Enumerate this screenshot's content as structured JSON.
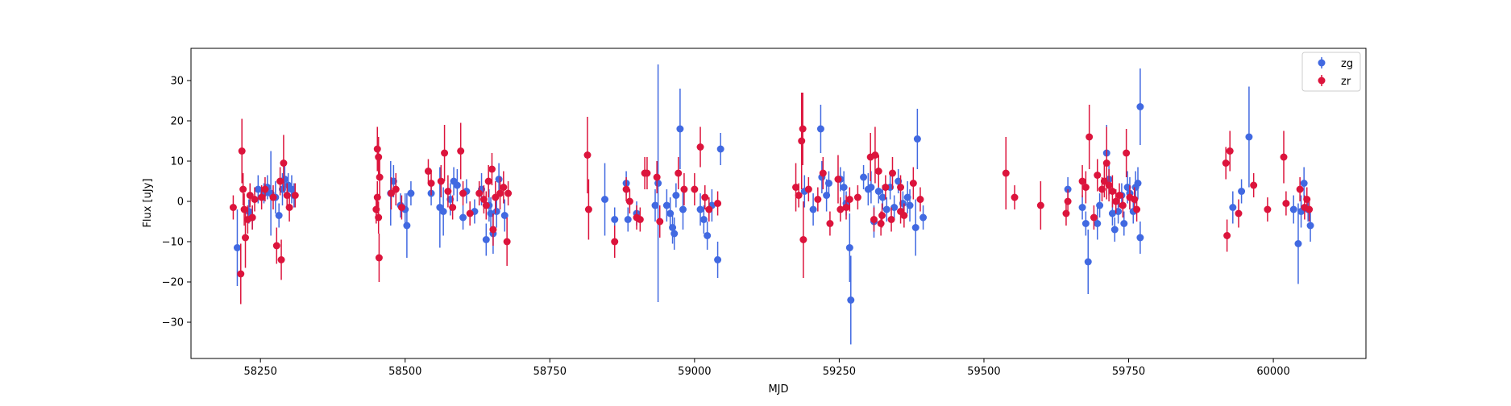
{
  "chart_data": {
    "type": "scatter",
    "title": "",
    "xlabel": "MJD",
    "ylabel": "Flux [uJy]",
    "xlim": [
      58130,
      60160
    ],
    "ylim": [
      -39,
      38
    ],
    "xticks": [
      58250,
      58500,
      58750,
      59000,
      59250,
      59500,
      59750,
      60000
    ],
    "yticks": [
      -30,
      -20,
      -10,
      0,
      10,
      20,
      30
    ],
    "grid": false,
    "legend": "top-right",
    "series": [
      {
        "name": "zg",
        "color": "#4169e1",
        "points": [
          [
            58210,
            -11.5,
            9.5
          ],
          [
            58230,
            -2.5,
            3.0
          ],
          [
            58236,
            -4.0,
            3.0
          ],
          [
            58246,
            3.0,
            3.5
          ],
          [
            58256,
            2.0,
            2.5
          ],
          [
            58262,
            3.5,
            3.0
          ],
          [
            58268,
            2.0,
            10.5
          ],
          [
            58276,
            1.0,
            4.0
          ],
          [
            58282,
            -3.5,
            3.0
          ],
          [
            58288,
            3.0,
            4.0
          ],
          [
            58292,
            5.5,
            4.0
          ],
          [
            58298,
            4.0,
            3.0
          ],
          [
            58304,
            3.0,
            3.5
          ],
          [
            58308,
            1.5,
            3.0
          ],
          [
            58475,
            2.0,
            8.0
          ],
          [
            58480,
            5.0,
            4.0
          ],
          [
            58492,
            -1.0,
            3.0
          ],
          [
            58500,
            -2.0,
            4.0
          ],
          [
            58503,
            -6.0,
            8.0
          ],
          [
            58510,
            2.0,
            3.0
          ],
          [
            58545,
            2.0,
            3.0
          ],
          [
            58560,
            -1.5,
            10.0
          ],
          [
            58566,
            -2.5,
            6.0
          ],
          [
            58578,
            0.5,
            4.0
          ],
          [
            58584,
            5.0,
            3.5
          ],
          [
            58590,
            4.0,
            4.0
          ],
          [
            58600,
            -4.0,
            3.0
          ],
          [
            58606,
            2.5,
            3.0
          ],
          [
            58620,
            -2.5,
            3.0
          ],
          [
            58632,
            3.0,
            4.0
          ],
          [
            58640,
            -9.5,
            4.0
          ],
          [
            58645,
            -1.0,
            4.0
          ],
          [
            58648,
            -3.0,
            4.0
          ],
          [
            58652,
            -8.0,
            5.0
          ],
          [
            58658,
            -2.5,
            4.0
          ],
          [
            58662,
            5.5,
            4.0
          ],
          [
            58672,
            -3.5,
            4.0
          ],
          [
            58845,
            0.5,
            9.0
          ],
          [
            58862,
            -4.5,
            3.0
          ],
          [
            58882,
            4.5,
            3.0
          ],
          [
            58885,
            -4.5,
            3.0
          ],
          [
            58900,
            -3.0,
            3.0
          ],
          [
            58932,
            -1.0,
            4.0
          ],
          [
            58937,
            4.5,
            29.5
          ],
          [
            58952,
            -1.0,
            4.0
          ],
          [
            58958,
            -3.0,
            4.0
          ],
          [
            58962,
            -6.5,
            4.0
          ],
          [
            58965,
            -8.0,
            4.0
          ],
          [
            58968,
            1.5,
            3.0
          ],
          [
            58975,
            18.0,
            10.0
          ],
          [
            58980,
            -2.0,
            5.0
          ],
          [
            59010,
            -2.0,
            4.0
          ],
          [
            59016,
            -4.5,
            3.5
          ],
          [
            59022,
            -8.5,
            3.5
          ],
          [
            59030,
            -1.0,
            4.0
          ],
          [
            59040,
            -14.5,
            4.5
          ],
          [
            59045,
            13.0,
            4.0
          ],
          [
            59190,
            2.5,
            4.0
          ],
          [
            59205,
            -2.0,
            4.0
          ],
          [
            59218,
            18.0,
            6.0
          ],
          [
            59220,
            6.0,
            4.0
          ],
          [
            59228,
            1.5,
            4.0
          ],
          [
            59232,
            4.5,
            3.0
          ],
          [
            59252,
            5.5,
            3.0
          ],
          [
            59258,
            3.5,
            4.0
          ],
          [
            59262,
            -0.5,
            3.0
          ],
          [
            59268,
            -11.5,
            8.5
          ],
          [
            59270,
            -24.5,
            11.0
          ],
          [
            59292,
            6.0,
            3.0
          ],
          [
            59300,
            3.0,
            4.0
          ],
          [
            59305,
            3.5,
            4.0
          ],
          [
            59310,
            -5.0,
            4.0
          ],
          [
            59318,
            2.5,
            3.0
          ],
          [
            59325,
            1.0,
            3.0
          ],
          [
            59332,
            -2.0,
            3.0
          ],
          [
            59338,
            3.5,
            3.0
          ],
          [
            59345,
            -1.5,
            3.0
          ],
          [
            59352,
            5.0,
            3.0
          ],
          [
            59360,
            -0.5,
            3.0
          ],
          [
            59368,
            1.0,
            4.0
          ],
          [
            59372,
            -1.0,
            4.0
          ],
          [
            59382,
            -6.5,
            7.0
          ],
          [
            59385,
            15.5,
            7.5
          ],
          [
            59395,
            -4.0,
            3.0
          ],
          [
            59645,
            3.0,
            3.0
          ],
          [
            59670,
            -1.5,
            3.0
          ],
          [
            59676,
            -5.5,
            3.0
          ],
          [
            59680,
            -15.0,
            8.0
          ],
          [
            59696,
            -5.5,
            4.0
          ],
          [
            59700,
            -1.0,
            3.0
          ],
          [
            59712,
            12.0,
            7.0
          ],
          [
            59716,
            5.5,
            4.0
          ],
          [
            59722,
            -3.0,
            3.0
          ],
          [
            59726,
            -7.0,
            3.0
          ],
          [
            59732,
            -2.5,
            3.0
          ],
          [
            59738,
            1.5,
            3.0
          ],
          [
            59742,
            -5.5,
            3.0
          ],
          [
            59748,
            3.5,
            4.0
          ],
          [
            59752,
            2.0,
            4.0
          ],
          [
            59758,
            -2.5,
            3.0
          ],
          [
            59762,
            3.5,
            4.0
          ],
          [
            59766,
            4.5,
            4.0
          ],
          [
            59770,
            -9.0,
            4.0
          ],
          [
            59770,
            23.5,
            9.5
          ],
          [
            59930,
            -1.5,
            4.0
          ],
          [
            59945,
            2.5,
            3.0
          ],
          [
            59958,
            16.0,
            12.5
          ],
          [
            60035,
            -2.0,
            3.5
          ],
          [
            60043,
            -10.5,
            10.0
          ],
          [
            60048,
            -2.5,
            4.0
          ],
          [
            60053,
            4.5,
            4.0
          ],
          [
            60060,
            -2.0,
            3.0
          ],
          [
            60064,
            -6.0,
            4.0
          ]
        ]
      },
      {
        "name": "zr",
        "color": "#dc143c",
        "points": [
          [
            58203,
            -1.5,
            3.0
          ],
          [
            58216,
            -18.0,
            7.5
          ],
          [
            58218,
            12.5,
            8.0
          ],
          [
            58220,
            3.0,
            4.0
          ],
          [
            58222,
            -2.0,
            4.0
          ],
          [
            58224,
            -9.0,
            7.5
          ],
          [
            58228,
            -4.5,
            3.5
          ],
          [
            58232,
            1.5,
            3.0
          ],
          [
            58236,
            -4.0,
            3.0
          ],
          [
            58240,
            0.5,
            3.0
          ],
          [
            58252,
            1.0,
            3.0
          ],
          [
            58258,
            3.0,
            3.0
          ],
          [
            58272,
            1.0,
            3.0
          ],
          [
            58278,
            -11.0,
            4.5
          ],
          [
            58284,
            5.0,
            3.5
          ],
          [
            58286,
            -14.5,
            5.0
          ],
          [
            58290,
            9.5,
            7.0
          ],
          [
            58296,
            1.5,
            3.0
          ],
          [
            58300,
            -1.5,
            3.5
          ],
          [
            58310,
            1.5,
            3.0
          ],
          [
            58452,
            13.0,
            5.5
          ],
          [
            58454,
            11.0,
            5.0
          ],
          [
            58456,
            6.0,
            5.0
          ],
          [
            58450,
            -2.0,
            3.5
          ],
          [
            58452,
            1.0,
            4.0
          ],
          [
            58454,
            -4.0,
            4.0
          ],
          [
            58455,
            -14.0,
            6.0
          ],
          [
            58476,
            2.0,
            4.0
          ],
          [
            58484,
            3.0,
            4.0
          ],
          [
            58494,
            -1.5,
            3.0
          ],
          [
            58540,
            7.5,
            3.0
          ],
          [
            58545,
            4.5,
            3.0
          ],
          [
            58562,
            5.0,
            4.0
          ],
          [
            58568,
            12.0,
            7.0
          ],
          [
            58574,
            2.5,
            4.0
          ],
          [
            58582,
            -1.5,
            3.0
          ],
          [
            58596,
            12.5,
            7.0
          ],
          [
            58600,
            2.0,
            3.0
          ],
          [
            58612,
            -3.0,
            3.0
          ],
          [
            58628,
            2.0,
            3.0
          ],
          [
            58636,
            0.5,
            3.5
          ],
          [
            58640,
            -1.0,
            3.5
          ],
          [
            58644,
            5.0,
            4.0
          ],
          [
            58650,
            8.0,
            4.0
          ],
          [
            58652,
            -7.0,
            4.0
          ],
          [
            58656,
            1.0,
            4.0
          ],
          [
            58664,
            2.0,
            4.0
          ],
          [
            58670,
            3.5,
            4.0
          ],
          [
            58676,
            -10.0,
            6.0
          ],
          [
            58678,
            2.0,
            3.0
          ],
          [
            58815,
            11.5,
            9.5
          ],
          [
            58817,
            -2.0,
            7.5
          ],
          [
            58862,
            -10.0,
            4.0
          ],
          [
            58882,
            3.0,
            3.0
          ],
          [
            58888,
            0.0,
            3.0
          ],
          [
            58900,
            -4.0,
            3.0
          ],
          [
            58906,
            -4.5,
            3.0
          ],
          [
            58914,
            7.0,
            4.0
          ],
          [
            58918,
            7.0,
            4.0
          ],
          [
            58935,
            6.0,
            4.0
          ],
          [
            58940,
            -5.0,
            4.0
          ],
          [
            58972,
            7.0,
            4.0
          ],
          [
            58982,
            3.0,
            4.0
          ],
          [
            59000,
            3.0,
            4.0
          ],
          [
            59010,
            13.5,
            5.0
          ],
          [
            59018,
            1.0,
            3.0
          ],
          [
            59025,
            -2.0,
            3.0
          ],
          [
            59040,
            -0.5,
            3.0
          ],
          [
            59175,
            3.5,
            6.0
          ],
          [
            59180,
            1.5,
            3.0
          ],
          [
            59185,
            15.0,
            12.0
          ],
          [
            59187,
            18.0,
            9.0
          ],
          [
            59188,
            -9.5,
            9.5
          ],
          [
            59197,
            3.0,
            3.0
          ],
          [
            59213,
            0.5,
            3.0
          ],
          [
            59222,
            7.0,
            4.0
          ],
          [
            59234,
            -5.5,
            3.0
          ],
          [
            59248,
            5.5,
            6.0
          ],
          [
            59252,
            -2.0,
            3.0
          ],
          [
            59262,
            -1.5,
            3.0
          ],
          [
            59268,
            0.5,
            3.0
          ],
          [
            59282,
            1.0,
            3.0
          ],
          [
            59304,
            11.0,
            6.0
          ],
          [
            59312,
            11.5,
            7.0
          ],
          [
            59318,
            7.5,
            4.0
          ],
          [
            59324,
            -3.5,
            3.0
          ],
          [
            59330,
            3.5,
            3.0
          ],
          [
            59342,
            7.0,
            4.0
          ],
          [
            59356,
            3.5,
            3.0
          ],
          [
            59362,
            -3.5,
            3.0
          ],
          [
            59378,
            4.5,
            4.0
          ],
          [
            59390,
            0.5,
            3.0
          ],
          [
            59310,
            -4.5,
            3.0
          ],
          [
            59322,
            -5.5,
            3.0
          ],
          [
            59340,
            -4.5,
            3.0
          ],
          [
            59356,
            -2.5,
            3.0
          ],
          [
            59538,
            7.0,
            9.0
          ],
          [
            59553,
            1.0,
            3.0
          ],
          [
            59598,
            -1.0,
            6.0
          ],
          [
            59645,
            0.0,
            3.0
          ],
          [
            59642,
            -3.0,
            3.0
          ],
          [
            59670,
            5.0,
            4.0
          ],
          [
            59676,
            3.5,
            4.0
          ],
          [
            59682,
            16.0,
            8.0
          ],
          [
            59690,
            -4.0,
            3.0
          ],
          [
            59696,
            6.5,
            4.0
          ],
          [
            59704,
            3.0,
            3.0
          ],
          [
            59708,
            5.0,
            4.0
          ],
          [
            59712,
            9.5,
            9.0
          ],
          [
            59716,
            4.0,
            4.0
          ],
          [
            59722,
            2.5,
            4.0
          ],
          [
            59728,
            0.0,
            3.0
          ],
          [
            59734,
            1.5,
            3.0
          ],
          [
            59740,
            -1.0,
            3.0
          ],
          [
            59746,
            12.0,
            6.0
          ],
          [
            59752,
            1.0,
            3.0
          ],
          [
            59760,
            0.5,
            3.0
          ],
          [
            59764,
            -2.0,
            3.0
          ],
          [
            59918,
            9.5,
            4.0
          ],
          [
            59920,
            -8.5,
            4.0
          ],
          [
            59925,
            12.5,
            5.0
          ],
          [
            59940,
            -3.0,
            3.5
          ],
          [
            59966,
            4.0,
            3.0
          ],
          [
            59990,
            -2.0,
            3.0
          ],
          [
            60018,
            11.0,
            6.5
          ],
          [
            60022,
            -0.5,
            3.0
          ],
          [
            60046,
            3.0,
            3.0
          ],
          [
            60054,
            -1.5,
            3.0
          ],
          [
            60058,
            0.5,
            3.0
          ],
          [
            60062,
            -2.0,
            3.0
          ]
        ]
      }
    ]
  }
}
